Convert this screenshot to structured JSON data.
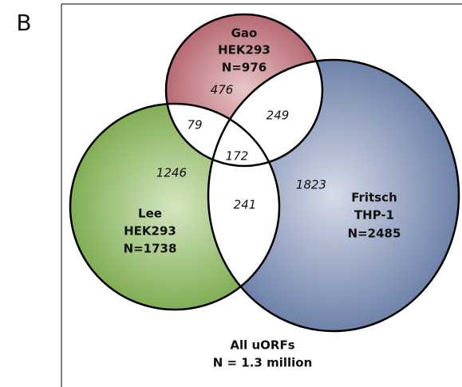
{
  "panel_label": "B",
  "sets": [
    {
      "name": "Gao",
      "cell_line": "HEK293",
      "total": "N=976"
    },
    {
      "name": "Lee",
      "cell_line": "HEK293",
      "total": "N=1738"
    },
    {
      "name": "Fritsch",
      "cell_line": "THP-1",
      "total": "N=2485"
    }
  ],
  "regions": {
    "gao_only": "476",
    "gao_lee": "79",
    "gao_fritsch": "249",
    "all_three": "172",
    "lee_only": "1246",
    "lee_fritsch": "241",
    "fritsch_only": "1823"
  },
  "footer": {
    "title": "All uORFs",
    "subtitle": "N = 1.3 million"
  }
}
